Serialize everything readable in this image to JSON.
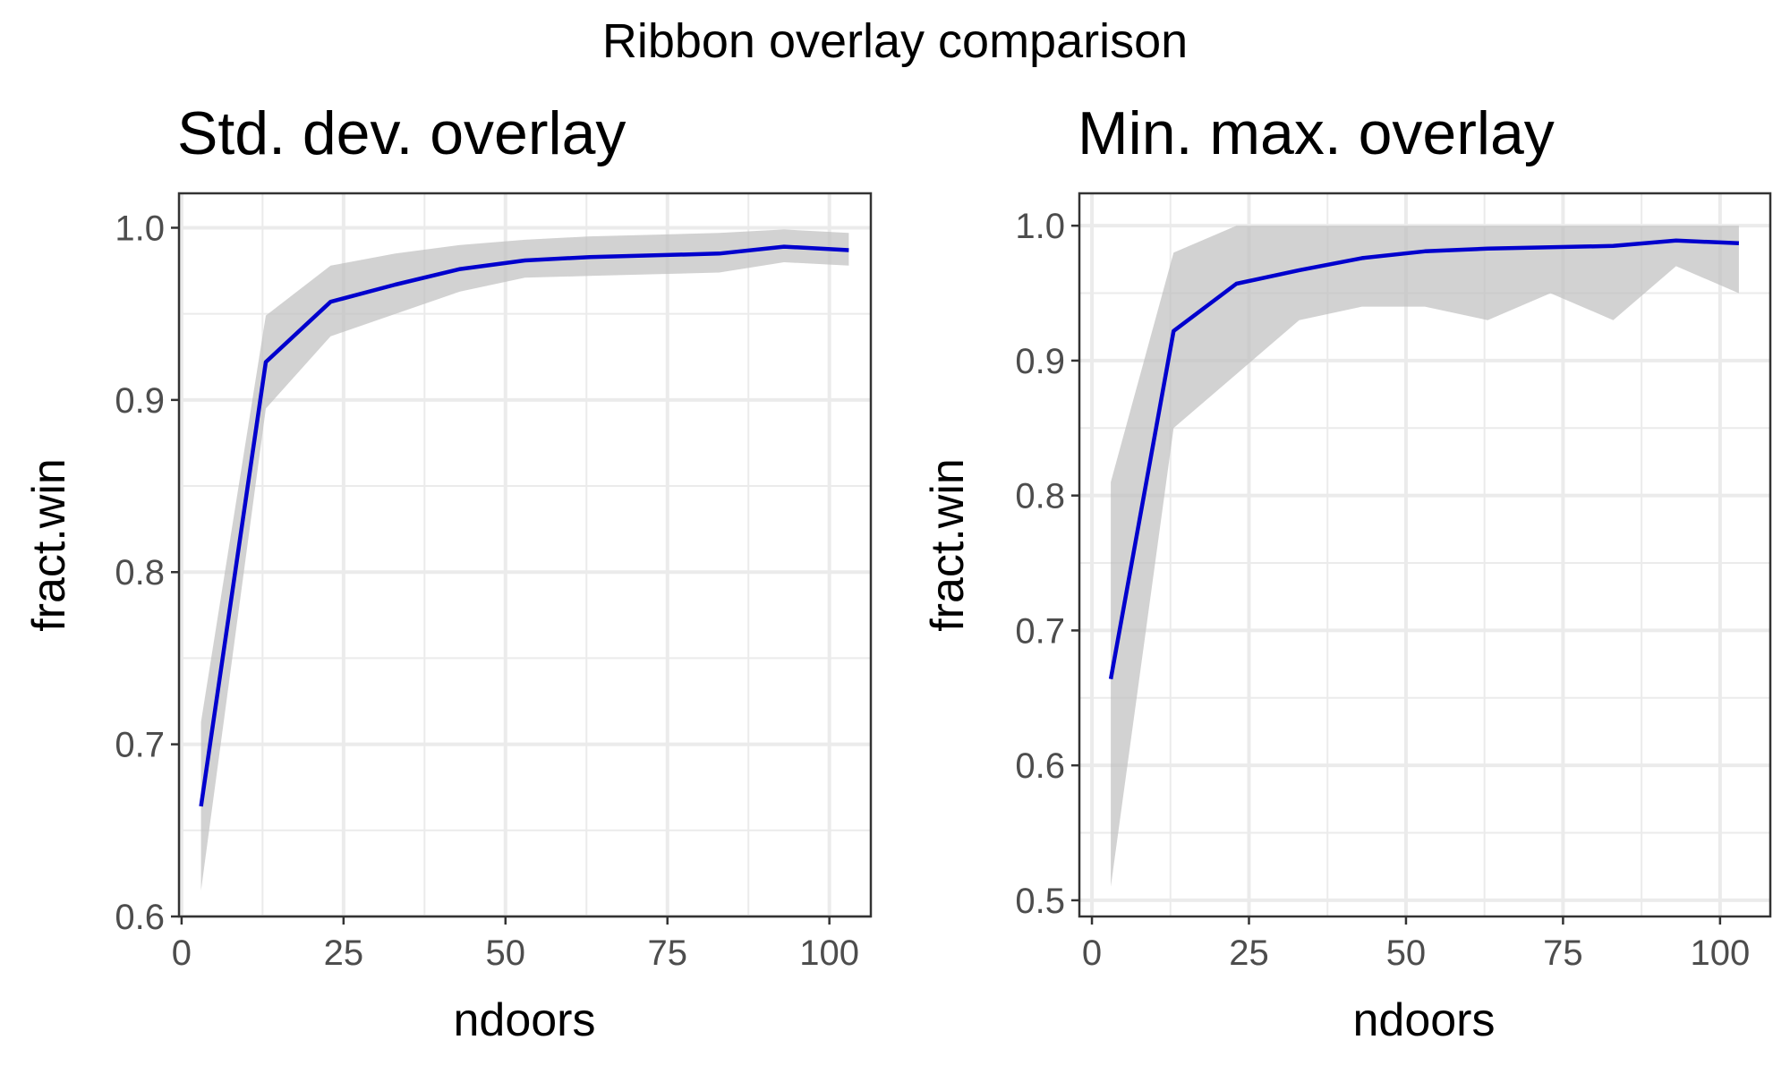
{
  "figure_title": "Ribbon overlay comparison",
  "colors": {
    "line": "#0000CD",
    "ribbon": "#BFBFBF",
    "grid": "#EBEBEB",
    "panel_border": "#333333"
  },
  "chart_data": [
    {
      "type": "line",
      "title": "Std. dev. overlay",
      "xlabel": "ndoors",
      "ylabel": "fract.win",
      "xlim": [
        -0.4,
        106.4
      ],
      "ylim": [
        0.6,
        1.02
      ],
      "x_ticks": [
        0,
        25,
        50,
        75,
        100
      ],
      "x_tick_labels": [
        "0",
        "25",
        "50",
        "75",
        "100"
      ],
      "x_minor_ticks": [
        12.5,
        37.5,
        62.5,
        87.5
      ],
      "y_ticks": [
        0.6,
        0.7,
        0.8,
        0.9,
        1.0
      ],
      "y_tick_labels": [
        "0.6",
        "0.7",
        "0.8",
        "0.9",
        "1.0"
      ],
      "y_minor_ticks": [
        0.65,
        0.75,
        0.85,
        0.95
      ],
      "grid": true,
      "ribbon": "mean ± std. dev.",
      "x": [
        3,
        13,
        23,
        33,
        43,
        53,
        63,
        73,
        83,
        93,
        103
      ],
      "y": [
        0.664,
        0.922,
        0.957,
        0.967,
        0.976,
        0.981,
        0.983,
        0.984,
        0.985,
        0.989,
        0.987
      ],
      "ribbon_lower": [
        0.615,
        0.895,
        0.937,
        0.95,
        0.963,
        0.971,
        0.972,
        0.973,
        0.974,
        0.98,
        0.978
      ],
      "ribbon_upper": [
        0.713,
        0.949,
        0.978,
        0.985,
        0.99,
        0.993,
        0.995,
        0.996,
        0.997,
        0.999,
        0.997
      ]
    },
    {
      "type": "line",
      "title": "Min. max. overlay",
      "xlabel": "ndoors",
      "ylabel": "fract.win",
      "xlim": [
        -2,
        108
      ],
      "ylim": [
        0.488,
        1.024
      ],
      "x_ticks": [
        0,
        25,
        50,
        75,
        100
      ],
      "x_tick_labels": [
        "0",
        "25",
        "50",
        "75",
        "100"
      ],
      "x_minor_ticks": [
        12.5,
        37.5,
        62.5,
        87.5
      ],
      "y_ticks": [
        0.5,
        0.6,
        0.7,
        0.8,
        0.9,
        1.0
      ],
      "y_tick_labels": [
        "0.5",
        "0.6",
        "0.7",
        "0.8",
        "0.9",
        "1.0"
      ],
      "y_minor_ticks": [
        0.55,
        0.65,
        0.75,
        0.85,
        0.95
      ],
      "grid": true,
      "ribbon": "min / max",
      "x": [
        3,
        13,
        23,
        33,
        43,
        53,
        63,
        73,
        83,
        93,
        103
      ],
      "y": [
        0.664,
        0.922,
        0.957,
        0.967,
        0.976,
        0.981,
        0.983,
        0.984,
        0.985,
        0.989,
        0.987
      ],
      "ribbon_lower": [
        0.51,
        0.85,
        0.89,
        0.93,
        0.94,
        0.94,
        0.93,
        0.95,
        0.93,
        0.97,
        0.95
      ],
      "ribbon_upper": [
        0.81,
        0.98,
        1.0,
        1.0,
        1.0,
        1.0,
        1.0,
        1.0,
        1.0,
        1.0,
        1.0
      ]
    }
  ]
}
